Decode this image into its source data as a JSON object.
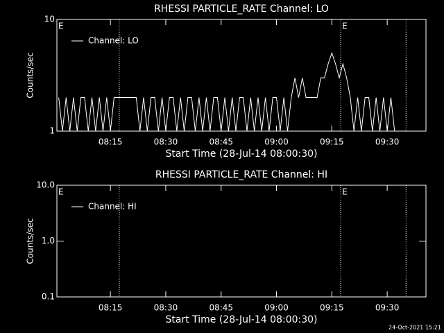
{
  "chart_data": [
    {
      "type": "line",
      "title": "RHESSI PARTICLE_RATE Channel: LO",
      "x_label": "Start Time (28-Jul-14 08:00:30)",
      "y_label": "Counts/sec",
      "xlim": [
        0.5,
        100.5
      ],
      "xticks": [
        {
          "value": 15,
          "label": "08:15"
        },
        {
          "value": 30,
          "label": "08:30"
        },
        {
          "value": 45,
          "label": "08:45"
        },
        {
          "value": 60,
          "label": "09:00"
        },
        {
          "value": 75,
          "label": "09:15"
        },
        {
          "value": 90,
          "label": "09:30"
        }
      ],
      "ylim": [
        1,
        10
      ],
      "yticks": [
        1,
        10
      ],
      "log_y": true,
      "vlines": [
        17.4,
        77.4,
        95.1
      ],
      "annotations": [
        {
          "text": "E",
          "x": 0.5
        },
        {
          "text": "E",
          "x": 77.4
        }
      ],
      "x": [
        1,
        2,
        3,
        4,
        5,
        6,
        7,
        8,
        9,
        10,
        11,
        12,
        13,
        14,
        15,
        16,
        17,
        18,
        19,
        20,
        21,
        22,
        23,
        24,
        25,
        26,
        27,
        28,
        29,
        30,
        31,
        32,
        33,
        34,
        35,
        36,
        37,
        38,
        39,
        40,
        41,
        42,
        43,
        44,
        45,
        46,
        47,
        48,
        49,
        50,
        51,
        52,
        53,
        54,
        55,
        56,
        57,
        58,
        59,
        60,
        61,
        62,
        63,
        64,
        65,
        66,
        67,
        68,
        69,
        70,
        71,
        72,
        73,
        74,
        75,
        76,
        77,
        78,
        79,
        80,
        81,
        82,
        83,
        84,
        85,
        86,
        87,
        88,
        89,
        90,
        91,
        92
      ],
      "series": [
        {
          "name": "Channel: LO",
          "color": "#ffffff",
          "values": [
            2,
            1,
            2,
            1,
            2,
            1,
            2,
            2,
            1,
            2,
            1,
            2,
            1,
            2,
            1,
            2,
            2,
            2,
            2,
            2,
            2,
            2,
            1,
            2,
            1,
            2,
            2,
            1,
            2,
            1,
            2,
            2,
            1,
            2,
            1,
            2,
            2,
            1,
            2,
            1,
            2,
            1,
            2,
            2,
            1,
            2,
            1,
            2,
            1,
            2,
            2,
            1,
            2,
            1,
            2,
            1,
            2,
            1,
            2,
            2,
            1,
            2,
            1,
            2,
            3,
            2,
            3,
            2,
            2,
            2,
            2,
            3,
            3,
            4,
            5,
            4,
            3,
            4,
            3,
            2,
            1,
            2,
            1,
            2,
            2,
            1,
            2,
            1,
            2,
            1,
            2,
            1
          ]
        }
      ]
    },
    {
      "type": "line",
      "title": "RHESSI PARTICLE_RATE Channel: HI",
      "x_label": "Start Time (28-Jul-14 08:00:30)",
      "y_label": "Counts/sec",
      "xlim": [
        0.5,
        100.5
      ],
      "xticks": [
        {
          "value": 15,
          "label": "08:15"
        },
        {
          "value": 30,
          "label": "08:30"
        },
        {
          "value": 45,
          "label": "08:45"
        },
        {
          "value": 60,
          "label": "09:00"
        },
        {
          "value": 75,
          "label": "09:15"
        },
        {
          "value": 90,
          "label": "09:30"
        }
      ],
      "ylim": [
        0.1,
        10
      ],
      "yticks": [
        0.1,
        {
          "value": 1,
          "label": "1.0"
        },
        {
          "value": 10,
          "label": "10.0"
        }
      ],
      "log_y": true,
      "vlines": [
        17.4,
        77.4,
        95.1
      ],
      "annotations": [
        {
          "text": "E",
          "x": 0.5
        },
        {
          "text": "E",
          "x": 77.4
        }
      ],
      "x": [],
      "series": [
        {
          "name": "Channel: HI",
          "color": "#ffffff",
          "values": []
        }
      ]
    }
  ],
  "footer": "24-Oct-2021 15:21"
}
